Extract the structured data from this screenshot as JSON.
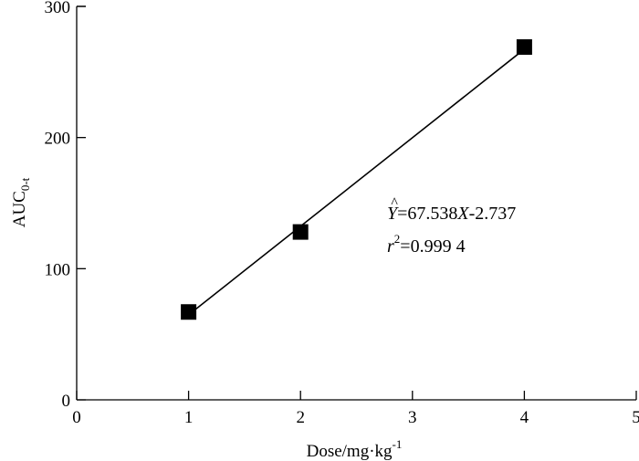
{
  "chart_data": {
    "type": "scatter",
    "xlabel": "Dose/mg·kg",
    "xlabel_sup": "-1",
    "ylabel": "AUC",
    "ylabel_sub": "0-t",
    "xlim": [
      0,
      5
    ],
    "ylim": [
      0,
      300
    ],
    "xticks": [
      0,
      1,
      2,
      3,
      4,
      5
    ],
    "yticks": [
      0,
      100,
      200,
      300
    ],
    "grid": false,
    "series": [
      {
        "x": [
          1,
          2,
          4
        ],
        "y": [
          67,
          128,
          269
        ],
        "marker": "square",
        "color": "#000000"
      }
    ],
    "fit_line": {
      "slope": 67.538,
      "intercept": -2.737,
      "x_range": [
        1,
        4
      ]
    },
    "annotations": {
      "equation_lhs": "Y",
      "equation_hat": "^",
      "equation_mid": "=67.538",
      "equation_var": "X",
      "equation_rest": "-2.737",
      "r_symbol": "r",
      "r_sup": "2",
      "r_value": "=0.999 4"
    }
  }
}
